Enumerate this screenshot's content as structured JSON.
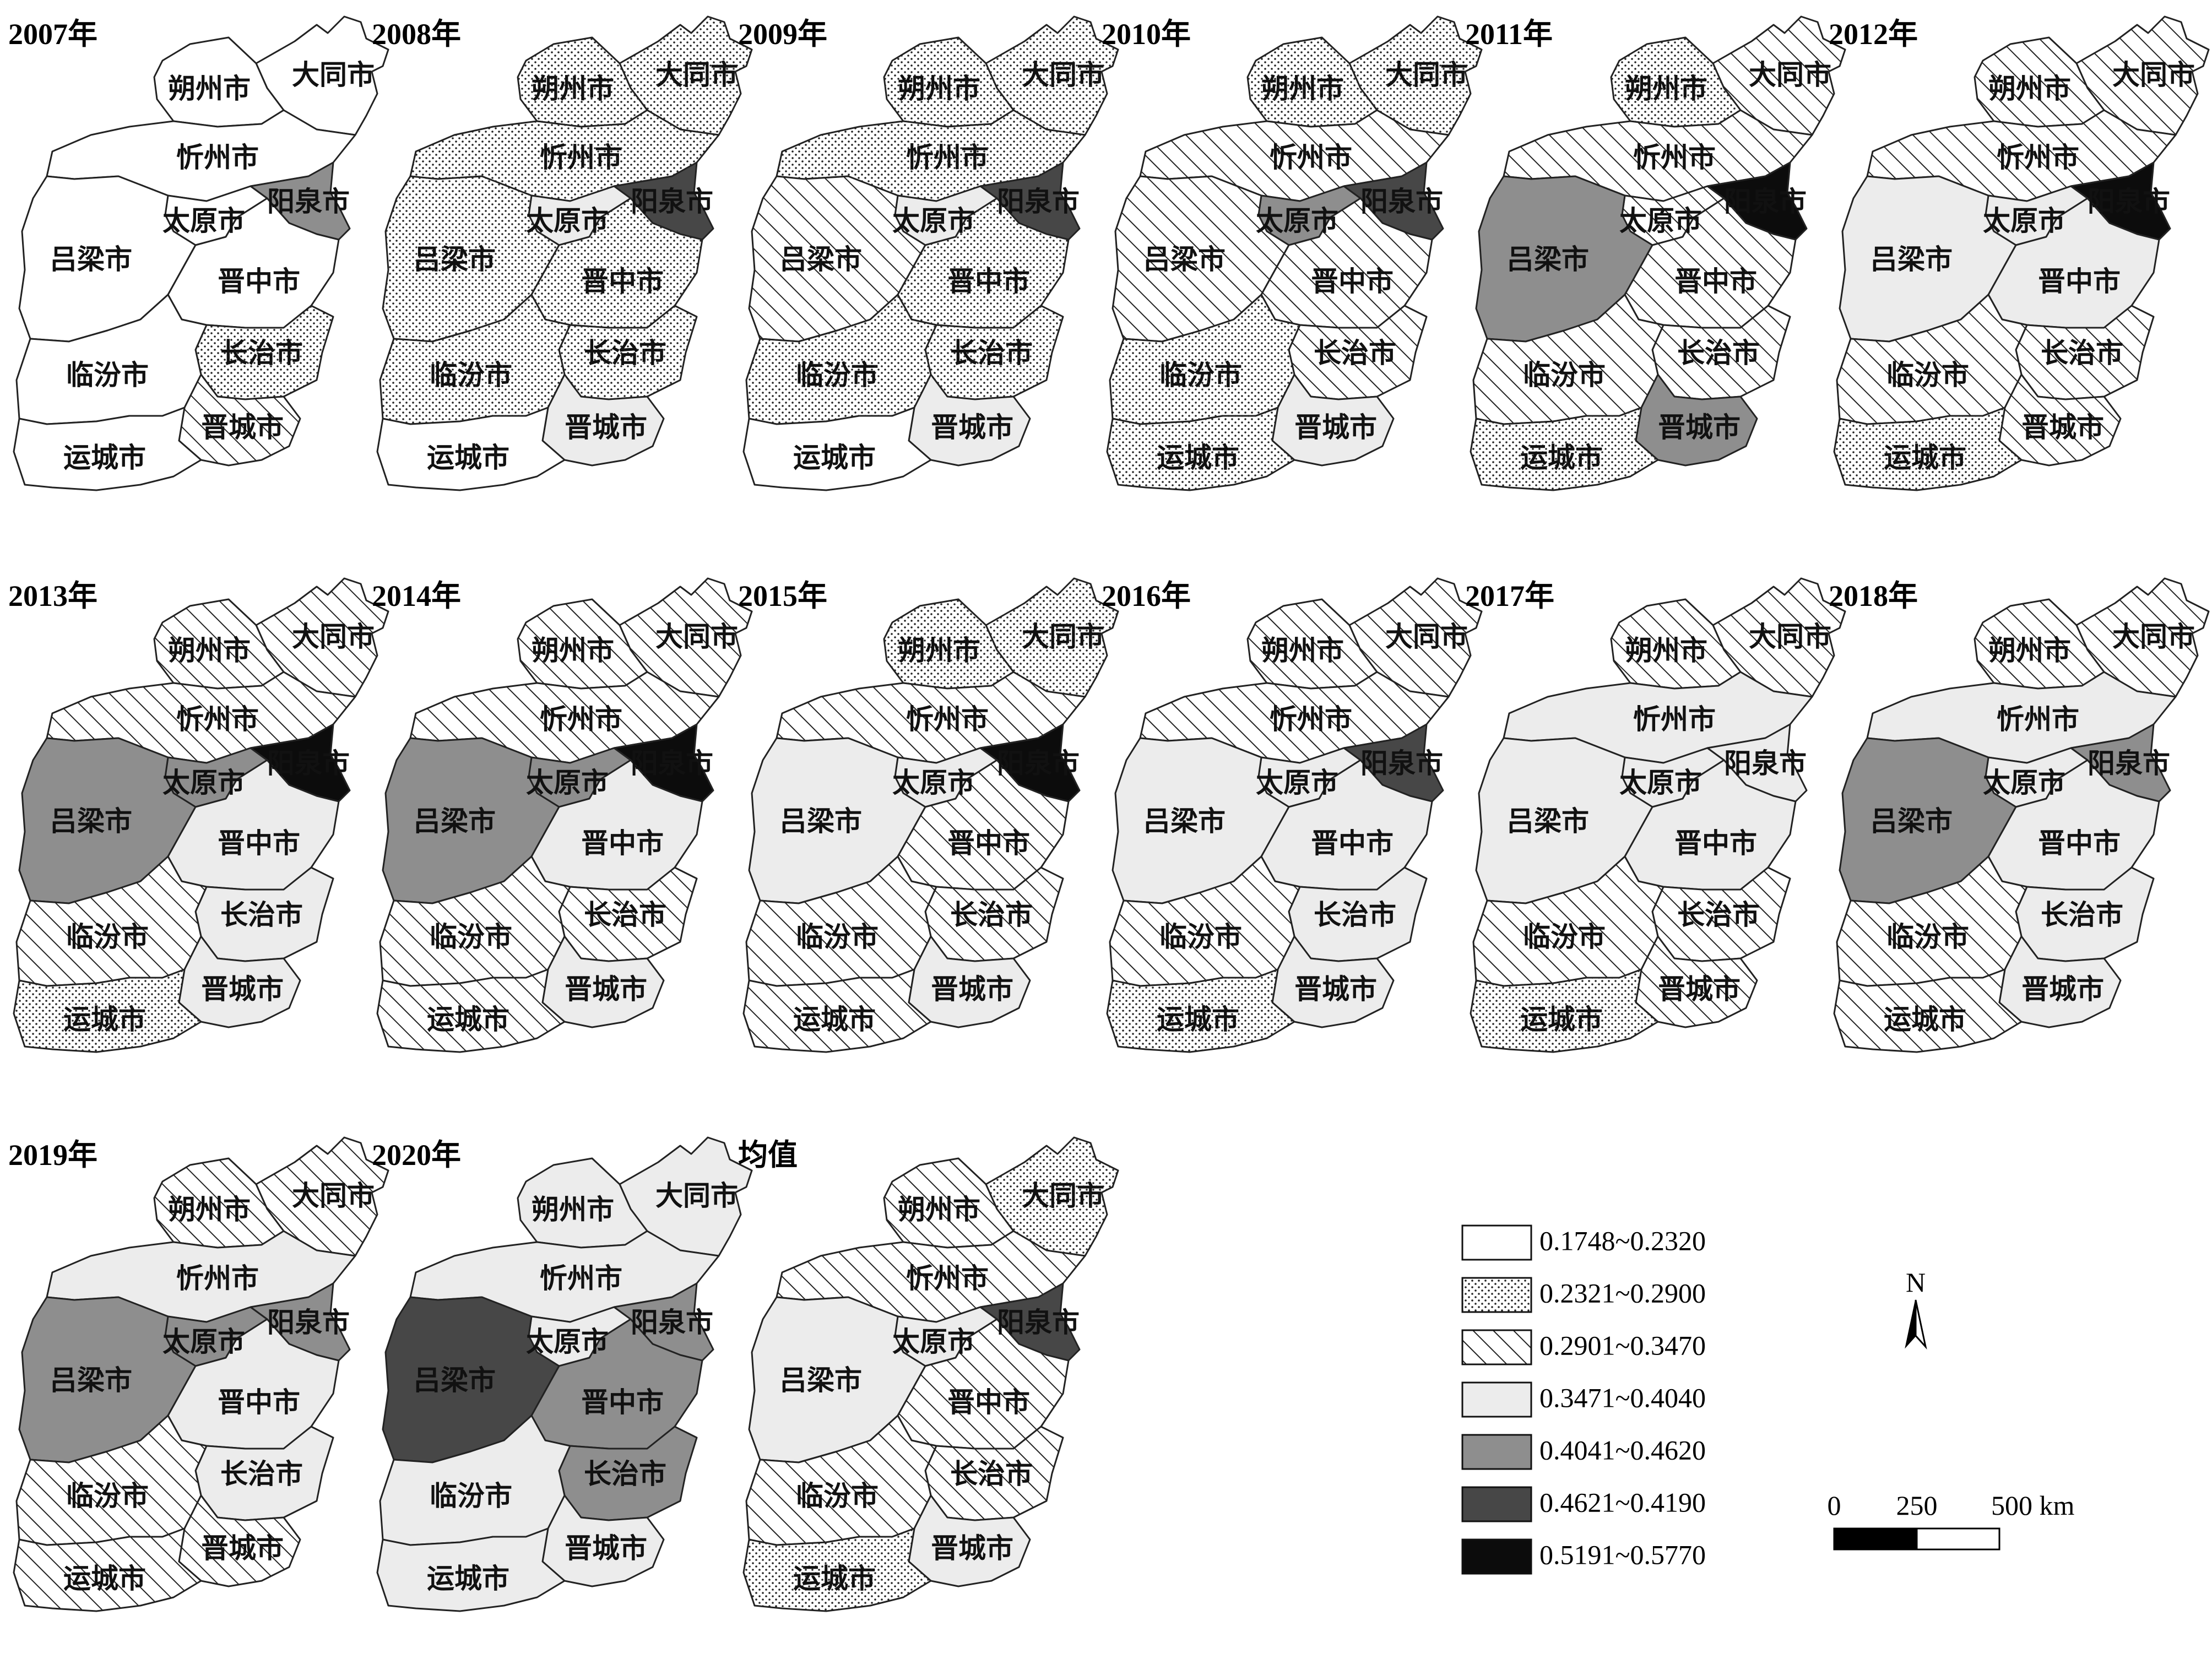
{
  "legend": [
    {
      "label": "0.1748~0.2320",
      "class": 1
    },
    {
      "label": "0.2321~0.2900",
      "class": 2
    },
    {
      "label": "0.2901~0.3470",
      "class": 3
    },
    {
      "label": "0.3471~0.4040",
      "class": 4
    },
    {
      "label": "0.4041~0.4620",
      "class": 5
    },
    {
      "label": "0.4621~0.4190",
      "class": 6
    },
    {
      "label": "0.5191~0.5770",
      "class": 7
    }
  ],
  "north_label": "N",
  "scale_bar": {
    "ticks": [
      "0",
      "250",
      "500 km"
    ]
  },
  "cities": [
    "大同市",
    "朔州市",
    "忻州市",
    "太原市",
    "阳泉市",
    "吕梁市",
    "晋中市",
    "长治市",
    "临汾市",
    "晋城市",
    "运城市"
  ],
  "maps": [
    {
      "title": "2007年",
      "classes": {
        "大同市": 1,
        "朔州市": 1,
        "忻州市": 1,
        "太原市": 1,
        "阳泉市": 5,
        "吕梁市": 1,
        "晋中市": 1,
        "长治市": 2,
        "临汾市": 1,
        "晋城市": 3,
        "运城市": 1
      }
    },
    {
      "title": "2008年",
      "classes": {
        "大同市": 2,
        "朔州市": 2,
        "忻州市": 2,
        "太原市": 4,
        "阳泉市": 6,
        "吕梁市": 2,
        "晋中市": 2,
        "长治市": 2,
        "临汾市": 2,
        "晋城市": 4,
        "运城市": 1
      }
    },
    {
      "title": "2009年",
      "classes": {
        "大同市": 2,
        "朔州市": 2,
        "忻州市": 2,
        "太原市": 4,
        "阳泉市": 6,
        "吕梁市": 3,
        "晋中市": 2,
        "长治市": 2,
        "临汾市": 2,
        "晋城市": 4,
        "运城市": 1
      }
    },
    {
      "title": "2010年",
      "classes": {
        "大同市": 2,
        "朔州市": 2,
        "忻州市": 3,
        "太原市": 5,
        "阳泉市": 6,
        "吕梁市": 3,
        "晋中市": 3,
        "长治市": 3,
        "临汾市": 2,
        "晋城市": 4,
        "运城市": 2
      }
    },
    {
      "title": "2011年",
      "classes": {
        "大同市": 3,
        "朔州市": 2,
        "忻州市": 3,
        "太原市": 3,
        "阳泉市": 7,
        "吕梁市": 5,
        "晋中市": 3,
        "长治市": 3,
        "临汾市": 3,
        "晋城市": 5,
        "运城市": 2
      }
    },
    {
      "title": "2012年",
      "classes": {
        "大同市": 3,
        "朔州市": 3,
        "忻州市": 3,
        "太原市": 4,
        "阳泉市": 7,
        "吕梁市": 4,
        "晋中市": 4,
        "长治市": 3,
        "临汾市": 3,
        "晋城市": 3,
        "运城市": 2
      }
    },
    {
      "title": "2013年",
      "classes": {
        "大同市": 3,
        "朔州市": 3,
        "忻州市": 3,
        "太原市": 5,
        "阳泉市": 7,
        "吕梁市": 5,
        "晋中市": 4,
        "长治市": 4,
        "临汾市": 3,
        "晋城市": 4,
        "运城市": 2
      }
    },
    {
      "title": "2014年",
      "classes": {
        "大同市": 3,
        "朔州市": 3,
        "忻州市": 3,
        "太原市": 5,
        "阳泉市": 7,
        "吕梁市": 5,
        "晋中市": 4,
        "长治市": 3,
        "临汾市": 3,
        "晋城市": 4,
        "运城市": 3
      }
    },
    {
      "title": "2015年",
      "classes": {
        "大同市": 2,
        "朔州市": 2,
        "忻州市": 3,
        "太原市": 4,
        "阳泉市": 7,
        "吕梁市": 4,
        "晋中市": 3,
        "长治市": 3,
        "临汾市": 3,
        "晋城市": 4,
        "运城市": 3
      }
    },
    {
      "title": "2016年",
      "classes": {
        "大同市": 3,
        "朔州市": 3,
        "忻州市": 3,
        "太原市": 4,
        "阳泉市": 6,
        "吕梁市": 4,
        "晋中市": 4,
        "长治市": 4,
        "临汾市": 3,
        "晋城市": 4,
        "运城市": 2
      }
    },
    {
      "title": "2017年",
      "classes": {
        "大同市": 3,
        "朔州市": 3,
        "忻州市": 4,
        "太原市": 4,
        "阳泉市": 4,
        "吕梁市": 4,
        "晋中市": 4,
        "长治市": 3,
        "临汾市": 3,
        "晋城市": 3,
        "运城市": 2
      }
    },
    {
      "title": "2018年",
      "classes": {
        "大同市": 3,
        "朔州市": 3,
        "忻州市": 4,
        "太原市": 4,
        "阳泉市": 5,
        "吕梁市": 5,
        "晋中市": 4,
        "长治市": 4,
        "临汾市": 3,
        "晋城市": 4,
        "运城市": 3
      }
    },
    {
      "title": "2019年",
      "classes": {
        "大同市": 3,
        "朔州市": 3,
        "忻州市": 4,
        "太原市": 5,
        "阳泉市": 5,
        "吕梁市": 5,
        "晋中市": 4,
        "长治市": 4,
        "临汾市": 3,
        "晋城市": 3,
        "运城市": 3
      }
    },
    {
      "title": "2020年",
      "classes": {
        "大同市": 4,
        "朔州市": 4,
        "忻州市": 4,
        "太原市": 4,
        "阳泉市": 5,
        "吕梁市": 6,
        "晋中市": 5,
        "长治市": 5,
        "临汾市": 4,
        "晋城市": 4,
        "运城市": 4
      }
    },
    {
      "title": "均值",
      "classes": {
        "大同市": 2,
        "朔州市": 3,
        "忻州市": 3,
        "太原市": 4,
        "阳泉市": 6,
        "吕梁市": 4,
        "晋中市": 3,
        "长治市": 3,
        "临汾市": 3,
        "晋城市": 4,
        "运城市": 2
      }
    }
  ],
  "colors": {
    "class1": "#ffffff",
    "class2": "#ffffff",
    "class3": "#ffffff",
    "class4": "#ececec",
    "class5": "#8e8e8e",
    "class6": "#474747",
    "class7": "#0c0c0c"
  }
}
